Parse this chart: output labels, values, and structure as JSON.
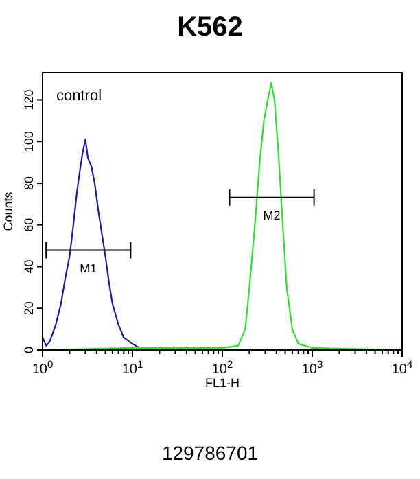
{
  "chart_data": {
    "type": "line",
    "title": "K562",
    "xlabel": "FL1-H",
    "ylabel": "Counts",
    "log": "x",
    "xlim": [
      1,
      10000
    ],
    "ylim": [
      0,
      133
    ],
    "xticks": [
      {
        "value": 1,
        "label": "10$^{0}$"
      },
      {
        "value": 2,
        "label": null
      },
      {
        "value": 3,
        "label": null
      },
      {
        "value": 4,
        "label": null
      },
      {
        "value": 5,
        "label": null
      },
      {
        "value": 6,
        "label": null
      },
      {
        "value": 7,
        "label": null
      },
      {
        "value": 8,
        "label": null
      },
      {
        "value": 9,
        "label": null
      },
      {
        "value": 10,
        "label": "10$^{1}$"
      },
      {
        "value": 20,
        "label": null
      },
      {
        "value": 30,
        "label": null
      },
      {
        "value": 40,
        "label": null
      },
      {
        "value": 50,
        "label": null
      },
      {
        "value": 60,
        "label": null
      },
      {
        "value": 70,
        "label": null
      },
      {
        "value": 80,
        "label": null
      },
      {
        "value": 90,
        "label": null
      },
      {
        "value": 100,
        "label": "10$^{2}$"
      },
      {
        "value": 200,
        "label": null
      },
      {
        "value": 300,
        "label": null
      },
      {
        "value": 400,
        "label": null
      },
      {
        "value": 500,
        "label": null
      },
      {
        "value": 600,
        "label": null
      },
      {
        "value": 700,
        "label": null
      },
      {
        "value": 800,
        "label": null
      },
      {
        "value": 900,
        "label": null
      },
      {
        "value": 1000,
        "label": "10$^{3}$"
      },
      {
        "value": 2000,
        "label": null
      },
      {
        "value": 3000,
        "label": null
      },
      {
        "value": 4000,
        "label": null
      },
      {
        "value": 5000,
        "label": null
      },
      {
        "value": 6000,
        "label": null
      },
      {
        "value": 7000,
        "label": null
      },
      {
        "value": 8000,
        "label": null
      },
      {
        "value": 9000,
        "label": null
      },
      {
        "value": 10000,
        "label": "10$^{4}$"
      }
    ],
    "yticks": [
      0,
      20,
      40,
      60,
      80,
      100,
      120
    ],
    "grid": false,
    "series": [
      {
        "color": "#1c1ca8",
        "x": [
          1,
          1.1,
          1.2,
          1.4,
          1.6,
          1.8,
          2,
          2.2,
          2.4,
          2.6,
          2.8,
          3,
          3.2,
          3.5,
          3.8,
          4.2,
          4.6,
          5,
          5.5,
          6,
          7,
          8,
          10,
          12,
          20
        ],
        "values": [
          6,
          2,
          4,
          12,
          22,
          35,
          45,
          60,
          75,
          86,
          95,
          101,
          92,
          88,
          80,
          66,
          55,
          45,
          32,
          22,
          12,
          6,
          3,
          1,
          1
        ]
      },
      {
        "color": "#33dd33",
        "x": [
          1,
          10,
          100,
          150,
          180,
          200,
          230,
          260,
          290,
          320,
          350,
          380,
          420,
          470,
          520,
          600,
          700,
          1000,
          10000
        ],
        "values": [
          0,
          1,
          1,
          2,
          10,
          30,
          60,
          90,
          110,
          120,
          128,
          120,
          95,
          60,
          30,
          10,
          3,
          1,
          0
        ]
      }
    ],
    "annotations": [
      "control",
      "129786701",
      "M1",
      "M2"
    ]
  }
}
